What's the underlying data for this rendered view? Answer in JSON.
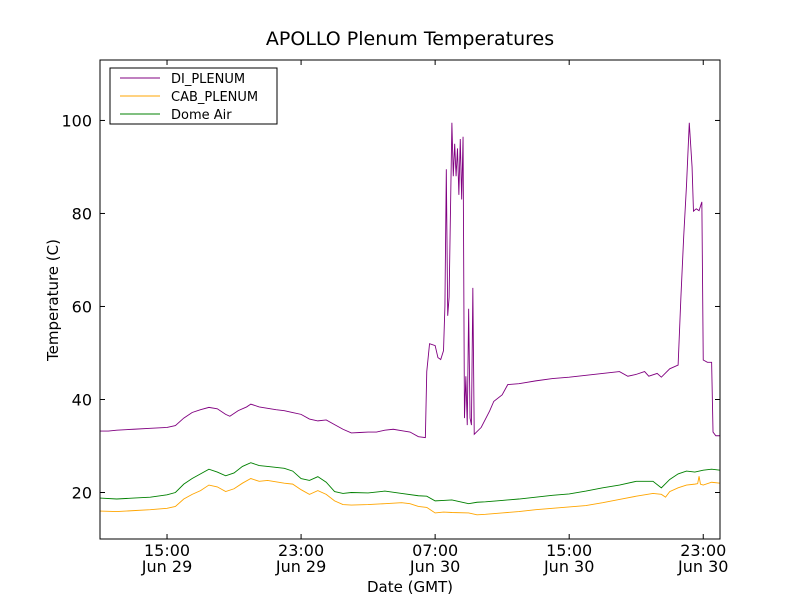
{
  "chart_data": {
    "type": "line",
    "title": "APOLLO Plenum Temperatures",
    "xlabel": "Date (GMT)",
    "ylabel": "Temperature (C)",
    "x_unit": "date-time (GMT)",
    "xlim": [
      "2014-06-29 11:00",
      "2014-07-01 00:00"
    ],
    "ylim": [
      10,
      113
    ],
    "yticks": [
      20,
      40,
      60,
      80,
      100
    ],
    "xticks": [
      {
        "value": "2014-06-29 15:00",
        "line1": "15:00",
        "line2": "Jun 29"
      },
      {
        "value": "2014-06-29 23:00",
        "line1": "23:00",
        "line2": "Jun 29"
      },
      {
        "value": "2014-06-30 07:00",
        "line1": "07:00",
        "line2": "Jun 30"
      },
      {
        "value": "2014-06-30 15:00",
        "line1": "15:00",
        "line2": "Jun 30"
      },
      {
        "value": "2014-06-30 23:00",
        "line1": "23:00",
        "line2": "Jun 30"
      }
    ],
    "grid": false,
    "legend_position": "top-left",
    "series": [
      {
        "name": "DI_PLENUM",
        "color": "#800080",
        "points": [
          [
            "2014-06-29 11:00",
            33.2
          ],
          [
            "2014-06-29 11:30",
            33.2
          ],
          [
            "2014-06-29 12:00",
            33.4
          ],
          [
            "2014-06-29 13:00",
            33.6
          ],
          [
            "2014-06-29 14:00",
            33.8
          ],
          [
            "2014-06-29 15:00",
            34.0
          ],
          [
            "2014-06-29 15:30",
            34.4
          ],
          [
            "2014-06-29 16:00",
            36.0
          ],
          [
            "2014-06-29 16:30",
            37.2
          ],
          [
            "2014-06-29 17:00",
            37.8
          ],
          [
            "2014-06-29 17:30",
            38.3
          ],
          [
            "2014-06-29 18:00",
            38.0
          ],
          [
            "2014-06-29 18:30",
            36.8
          ],
          [
            "2014-06-29 18:45",
            36.4
          ],
          [
            "2014-06-29 19:15",
            37.6
          ],
          [
            "2014-06-29 19:45",
            38.4
          ],
          [
            "2014-06-29 20:00",
            39.0
          ],
          [
            "2014-06-29 20:30",
            38.4
          ],
          [
            "2014-06-29 21:00",
            38.1
          ],
          [
            "2014-06-29 21:30",
            37.8
          ],
          [
            "2014-06-29 22:00",
            37.6
          ],
          [
            "2014-06-29 22:30",
            37.2
          ],
          [
            "2014-06-29 23:00",
            36.8
          ],
          [
            "2014-06-29 23:30",
            35.8
          ],
          [
            "2014-06-30 00:00",
            35.4
          ],
          [
            "2014-06-30 00:30",
            35.6
          ],
          [
            "2014-06-30 01:00",
            34.6
          ],
          [
            "2014-06-30 01:30",
            33.6
          ],
          [
            "2014-06-30 02:00",
            32.8
          ],
          [
            "2014-06-30 02:30",
            32.9
          ],
          [
            "2014-06-30 03:00",
            33.0
          ],
          [
            "2014-06-30 03:30",
            33.0
          ],
          [
            "2014-06-30 04:00",
            33.4
          ],
          [
            "2014-06-30 04:30",
            33.6
          ],
          [
            "2014-06-30 05:00",
            33.3
          ],
          [
            "2014-06-30 05:30",
            33.0
          ],
          [
            "2014-06-30 06:00",
            32.0
          ],
          [
            "2014-06-30 06:25",
            31.8
          ],
          [
            "2014-06-30 06:30",
            46.0
          ],
          [
            "2014-06-30 06:40",
            52.0
          ],
          [
            "2014-06-30 07:00",
            51.6
          ],
          [
            "2014-06-30 07:10",
            49.0
          ],
          [
            "2014-06-30 07:20",
            48.6
          ],
          [
            "2014-06-30 07:30",
            50.5
          ],
          [
            "2014-06-30 07:35",
            60.0
          ],
          [
            "2014-06-30 07:40",
            89.5
          ],
          [
            "2014-06-30 07:45",
            58.0
          ],
          [
            "2014-06-30 07:50",
            62.0
          ],
          [
            "2014-06-30 08:00",
            99.5
          ],
          [
            "2014-06-30 08:05",
            88.0
          ],
          [
            "2014-06-30 08:10",
            95.0
          ],
          [
            "2014-06-30 08:15",
            88.0
          ],
          [
            "2014-06-30 08:20",
            94.0
          ],
          [
            "2014-06-30 08:25",
            84.0
          ],
          [
            "2014-06-30 08:30",
            96.0
          ],
          [
            "2014-06-30 08:35",
            83.0
          ],
          [
            "2014-06-30 08:40",
            96.5
          ],
          [
            "2014-06-30 08:45",
            36.0
          ],
          [
            "2014-06-30 08:50",
            45.0
          ],
          [
            "2014-06-30 08:55",
            34.5
          ],
          [
            "2014-06-30 09:00",
            59.5
          ],
          [
            "2014-06-30 09:05",
            36.0
          ],
          [
            "2014-06-30 09:10",
            34.5
          ],
          [
            "2014-06-30 09:15",
            64.0
          ],
          [
            "2014-06-30 09:20",
            32.5
          ],
          [
            "2014-06-30 09:45",
            34.0
          ],
          [
            "2014-06-30 10:15",
            37.5
          ],
          [
            "2014-06-30 10:30",
            39.6
          ],
          [
            "2014-06-30 11:00",
            41.0
          ],
          [
            "2014-06-30 11:20",
            43.2
          ],
          [
            "2014-06-30 12:00",
            43.4
          ],
          [
            "2014-06-30 13:00",
            44.0
          ],
          [
            "2014-06-30 14:00",
            44.5
          ],
          [
            "2014-06-30 15:00",
            44.8
          ],
          [
            "2014-06-30 16:00",
            45.2
          ],
          [
            "2014-06-30 17:00",
            45.6
          ],
          [
            "2014-06-30 18:00",
            46.0
          ],
          [
            "2014-06-30 18:30",
            45.0
          ],
          [
            "2014-06-30 19:00",
            45.4
          ],
          [
            "2014-06-30 19:30",
            46.0
          ],
          [
            "2014-06-30 19:45",
            45.0
          ],
          [
            "2014-06-30 20:15",
            45.6
          ],
          [
            "2014-06-30 20:30",
            44.8
          ],
          [
            "2014-06-30 21:00",
            46.6
          ],
          [
            "2014-06-30 21:30",
            47.4
          ],
          [
            "2014-06-30 21:40",
            62.0
          ],
          [
            "2014-06-30 21:50",
            75.0
          ],
          [
            "2014-06-30 22:00",
            86.0
          ],
          [
            "2014-06-30 22:10",
            99.5
          ],
          [
            "2014-06-30 22:20",
            90.0
          ],
          [
            "2014-06-30 22:25",
            80.5
          ],
          [
            "2014-06-30 22:35",
            81.0
          ],
          [
            "2014-06-30 22:45",
            80.6
          ],
          [
            "2014-06-30 22:55",
            82.5
          ],
          [
            "2014-06-30 23:00",
            48.5
          ],
          [
            "2014-06-30 23:15",
            48.0
          ],
          [
            "2014-06-30 23:30",
            48.0
          ],
          [
            "2014-06-30 23:35",
            33.0
          ],
          [
            "2014-06-30 23:45",
            32.2
          ],
          [
            "2014-07-01 00:00",
            32.2
          ]
        ]
      },
      {
        "name": "CAB_PLENUM",
        "color": "#ffa500",
        "points": [
          [
            "2014-06-29 11:00",
            16.0
          ],
          [
            "2014-06-29 12:00",
            15.9
          ],
          [
            "2014-06-29 13:00",
            16.1
          ],
          [
            "2014-06-29 14:00",
            16.3
          ],
          [
            "2014-06-29 15:00",
            16.6
          ],
          [
            "2014-06-29 15:30",
            17.0
          ],
          [
            "2014-06-29 16:00",
            18.6
          ],
          [
            "2014-06-29 16:30",
            19.6
          ],
          [
            "2014-06-29 17:00",
            20.4
          ],
          [
            "2014-06-29 17:30",
            21.6
          ],
          [
            "2014-06-29 18:00",
            21.2
          ],
          [
            "2014-06-29 18:30",
            20.2
          ],
          [
            "2014-06-29 19:00",
            20.8
          ],
          [
            "2014-06-29 19:30",
            22.0
          ],
          [
            "2014-06-29 20:00",
            23.0
          ],
          [
            "2014-06-29 20:30",
            22.4
          ],
          [
            "2014-06-29 21:00",
            22.6
          ],
          [
            "2014-06-29 22:00",
            22.0
          ],
          [
            "2014-06-29 22:30",
            21.8
          ],
          [
            "2014-06-29 23:00",
            20.6
          ],
          [
            "2014-06-29 23:30",
            19.6
          ],
          [
            "2014-06-30 00:00",
            20.4
          ],
          [
            "2014-06-30 00:30",
            19.6
          ],
          [
            "2014-06-30 01:00",
            18.2
          ],
          [
            "2014-06-30 01:30",
            17.4
          ],
          [
            "2014-06-30 02:00",
            17.3
          ],
          [
            "2014-06-30 03:00",
            17.4
          ],
          [
            "2014-06-30 04:00",
            17.6
          ],
          [
            "2014-06-30 05:00",
            17.8
          ],
          [
            "2014-06-30 05:30",
            17.6
          ],
          [
            "2014-06-30 06:00",
            17.0
          ],
          [
            "2014-06-30 06:30",
            16.8
          ],
          [
            "2014-06-30 07:00",
            15.6
          ],
          [
            "2014-06-30 07:30",
            15.8
          ],
          [
            "2014-06-30 08:00",
            15.7
          ],
          [
            "2014-06-30 09:00",
            15.6
          ],
          [
            "2014-06-30 09:30",
            15.2
          ],
          [
            "2014-06-30 10:00",
            15.3
          ],
          [
            "2014-06-30 11:00",
            15.6
          ],
          [
            "2014-06-30 12:00",
            15.9
          ],
          [
            "2014-06-30 13:00",
            16.3
          ],
          [
            "2014-06-30 14:00",
            16.6
          ],
          [
            "2014-06-30 15:00",
            16.9
          ],
          [
            "2014-06-30 16:00",
            17.2
          ],
          [
            "2014-06-30 17:00",
            17.8
          ],
          [
            "2014-06-30 18:00",
            18.5
          ],
          [
            "2014-06-30 19:00",
            19.2
          ],
          [
            "2014-06-30 20:00",
            19.8
          ],
          [
            "2014-06-30 20:30",
            19.6
          ],
          [
            "2014-06-30 20:45",
            19.0
          ],
          [
            "2014-06-30 21:00",
            20.2
          ],
          [
            "2014-06-30 21:30",
            21.0
          ],
          [
            "2014-06-30 22:00",
            21.6
          ],
          [
            "2014-06-30 22:30",
            21.8
          ],
          [
            "2014-06-30 22:40",
            21.9
          ],
          [
            "2014-06-30 22:45",
            23.5
          ],
          [
            "2014-06-30 22:50",
            21.8
          ],
          [
            "2014-06-30 23:00",
            21.6
          ],
          [
            "2014-06-30 23:30",
            22.2
          ],
          [
            "2014-07-01 00:00",
            22.0
          ]
        ]
      },
      {
        "name": "Dome Air",
        "color": "#008000",
        "points": [
          [
            "2014-06-29 11:00",
            18.8
          ],
          [
            "2014-06-29 12:00",
            18.6
          ],
          [
            "2014-06-29 13:00",
            18.8
          ],
          [
            "2014-06-29 14:00",
            19.0
          ],
          [
            "2014-06-29 15:00",
            19.5
          ],
          [
            "2014-06-29 15:30",
            20.0
          ],
          [
            "2014-06-29 16:00",
            21.8
          ],
          [
            "2014-06-29 16:30",
            23.0
          ],
          [
            "2014-06-29 17:00",
            24.0
          ],
          [
            "2014-06-29 17:30",
            25.0
          ],
          [
            "2014-06-29 18:00",
            24.4
          ],
          [
            "2014-06-29 18:30",
            23.6
          ],
          [
            "2014-06-29 19:00",
            24.2
          ],
          [
            "2014-06-29 19:30",
            25.6
          ],
          [
            "2014-06-29 20:00",
            26.4
          ],
          [
            "2014-06-29 20:30",
            25.8
          ],
          [
            "2014-06-29 21:00",
            25.6
          ],
          [
            "2014-06-29 22:00",
            25.2
          ],
          [
            "2014-06-29 22:30",
            24.6
          ],
          [
            "2014-06-29 23:00",
            23.0
          ],
          [
            "2014-06-29 23:30",
            22.6
          ],
          [
            "2014-06-30 00:00",
            23.4
          ],
          [
            "2014-06-30 00:30",
            22.2
          ],
          [
            "2014-06-30 01:00",
            20.2
          ],
          [
            "2014-06-30 01:30",
            19.8
          ],
          [
            "2014-06-30 02:00",
            20.0
          ],
          [
            "2014-06-30 03:00",
            19.9
          ],
          [
            "2014-06-30 04:00",
            20.3
          ],
          [
            "2014-06-30 05:00",
            19.8
          ],
          [
            "2014-06-30 06:00",
            19.3
          ],
          [
            "2014-06-30 06:30",
            19.2
          ],
          [
            "2014-06-30 07:00",
            18.2
          ],
          [
            "2014-06-30 07:30",
            18.3
          ],
          [
            "2014-06-30 08:00",
            18.4
          ],
          [
            "2014-06-30 08:30",
            18.0
          ],
          [
            "2014-06-30 09:00",
            17.6
          ],
          [
            "2014-06-30 09:30",
            17.9
          ],
          [
            "2014-06-30 10:00",
            18.0
          ],
          [
            "2014-06-30 11:00",
            18.3
          ],
          [
            "2014-06-30 12:00",
            18.6
          ],
          [
            "2014-06-30 13:00",
            19.0
          ],
          [
            "2014-06-30 14:00",
            19.4
          ],
          [
            "2014-06-30 15:00",
            19.7
          ],
          [
            "2014-06-30 16:00",
            20.3
          ],
          [
            "2014-06-30 17:00",
            21.0
          ],
          [
            "2014-06-30 18:00",
            21.6
          ],
          [
            "2014-06-30 19:00",
            22.4
          ],
          [
            "2014-06-30 20:00",
            22.4
          ],
          [
            "2014-06-30 20:30",
            21.0
          ],
          [
            "2014-06-30 21:00",
            22.8
          ],
          [
            "2014-06-30 21:30",
            24.0
          ],
          [
            "2014-06-30 22:00",
            24.6
          ],
          [
            "2014-06-30 22:30",
            24.4
          ],
          [
            "2014-06-30 23:00",
            24.8
          ],
          [
            "2014-06-30 23:30",
            25.0
          ],
          [
            "2014-07-01 00:00",
            24.8
          ]
        ]
      }
    ]
  }
}
